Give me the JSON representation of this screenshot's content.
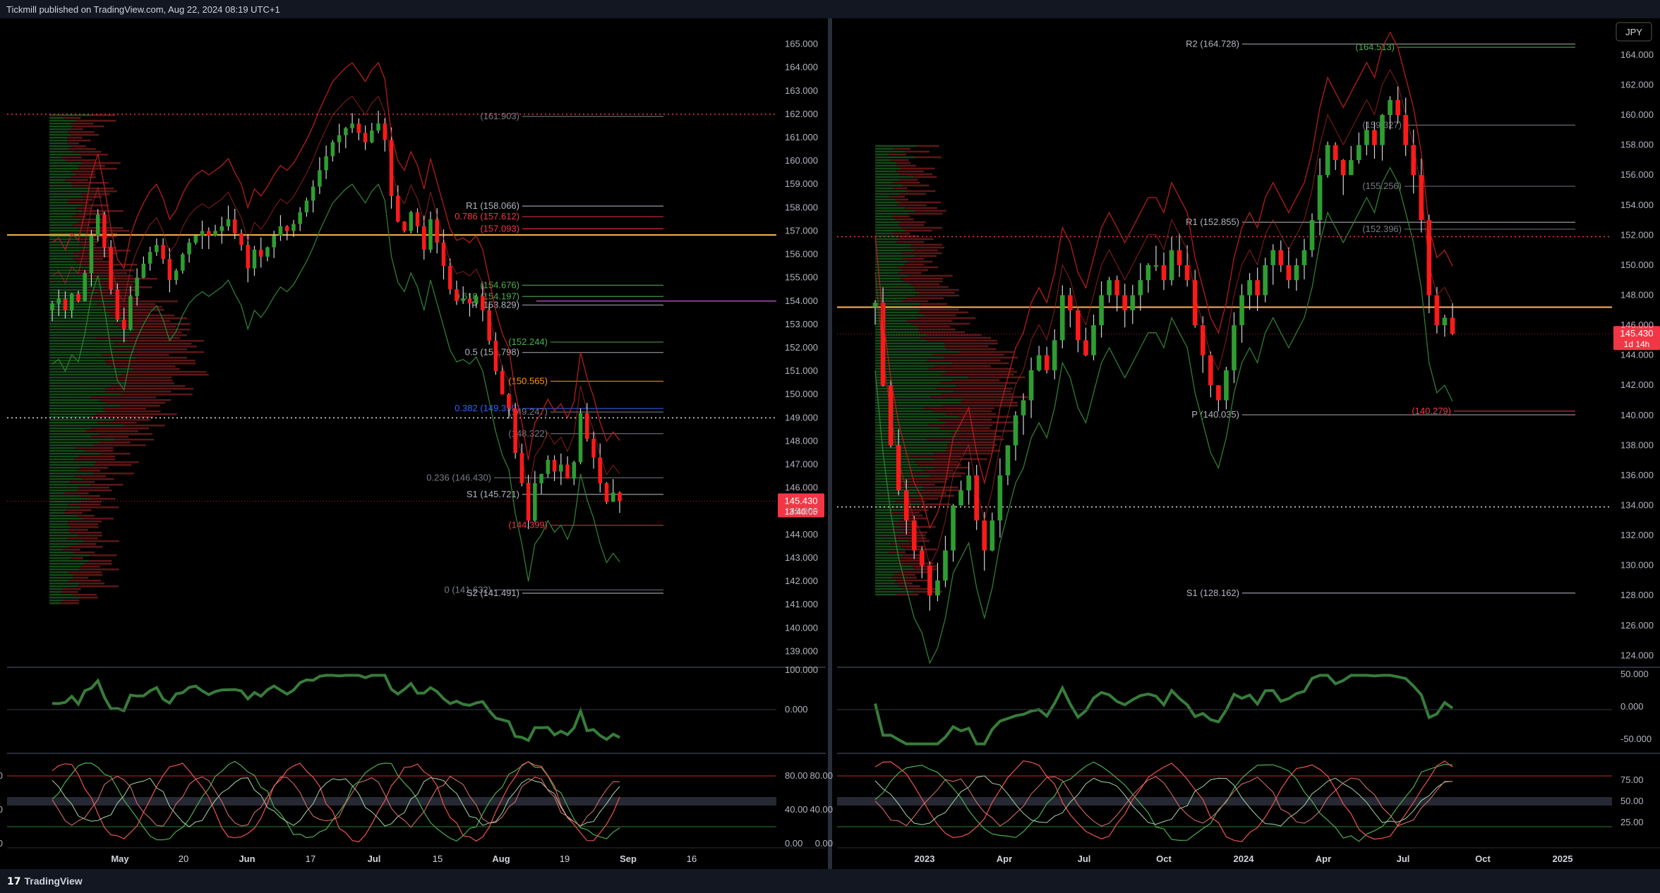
{
  "header": {
    "published_text": "Tickmill published on TradingView.com, Aug 22, 2024 08:19 UTC+1"
  },
  "footer": {
    "logo_text": "TradingView",
    "logo_glyph": "17"
  },
  "chart_data": [
    {
      "type": "candlestick",
      "panel": "left",
      "ylim": [
        138.5,
        165.5
      ],
      "price_ticks": [
        "165.000",
        "164.000",
        "163.000",
        "162.000",
        "161.000",
        "160.000",
        "159.000",
        "158.000",
        "157.000",
        "156.000",
        "155.000",
        "154.000",
        "153.000",
        "152.000",
        "151.000",
        "150.000",
        "149.000",
        "148.000",
        "147.000",
        "146.000",
        "145.000",
        "144.000",
        "143.000",
        "142.000",
        "141.000",
        "140.000",
        "139.000"
      ],
      "x_ticks": [
        "May",
        "20",
        "Jun",
        "17",
        "Jul",
        "15",
        "Aug",
        "19",
        "Sep",
        "16"
      ],
      "last_price": {
        "value": "145.430",
        "countdown": "13:40:05"
      },
      "closes": [
        153.9,
        154.1,
        153.6,
        154.3,
        154.0,
        155.2,
        156.8,
        157.7,
        156.3,
        154.5,
        153.2,
        152.8,
        154.2,
        155.0,
        155.6,
        156.1,
        156.4,
        155.8,
        154.9,
        155.3,
        156.0,
        156.5,
        156.8,
        157.0,
        156.8,
        157.0,
        157.2,
        157.5,
        156.9,
        156.4,
        155.4,
        156.2,
        155.9,
        156.3,
        156.8,
        157.2,
        157.0,
        157.3,
        157.8,
        158.3,
        158.9,
        159.6,
        160.2,
        160.8,
        161.1,
        161.4,
        161.6,
        161.2,
        160.8,
        161.3,
        161.6,
        160.9,
        158.5,
        157.4,
        157.0,
        157.8,
        157.2,
        156.2,
        157.5,
        156.5,
        155.5,
        154.5,
        154.0,
        154.1,
        153.9,
        154.2,
        153.6,
        152.3,
        151.0,
        150.0,
        149.4,
        147.5,
        146.2,
        144.6,
        146.2,
        146.6,
        147.2,
        146.7,
        147.0,
        146.4,
        147.1,
        149.2,
        148.1,
        147.3,
        146.2,
        145.4,
        145.8,
        145.43
      ],
      "levels": [
        {
          "label": "(161.903)",
          "value": 161.903,
          "color": "#787b86"
        },
        {
          "label": "0.786 (157.612)",
          "value": 157.612,
          "color": "#f23645"
        },
        {
          "label": "R1 (158.066)",
          "value": 158.066,
          "color": "#b2b5be"
        },
        {
          "label": "(157.093)",
          "value": 157.093,
          "color": "#f23645"
        },
        {
          "label": "(154.676)",
          "value": 154.676,
          "color": "#4caf50"
        },
        {
          "label": "0.618 (154.197)",
          "value": 154.197,
          "color": "#4caf50"
        },
        {
          "label": "P (153.829)",
          "value": 153.829,
          "color": "#b2b5be"
        },
        {
          "label": "(152.244)",
          "value": 152.244,
          "color": "#4caf50"
        },
        {
          "label": "0.5 (151.798)",
          "value": 151.798,
          "color": "#b2b5be"
        },
        {
          "label": "(150.565)",
          "value": 150.565,
          "color": "#ff9800"
        },
        {
          "label": "0.382 (149.399)",
          "value": 149.399,
          "color": "#2962ff"
        },
        {
          "label": "(149.247)",
          "value": 149.247,
          "color": "#787b86"
        },
        {
          "label": "(148.322)",
          "value": 148.322,
          "color": "#787b86"
        },
        {
          "label": "0.236 (146.430)",
          "value": 146.43,
          "color": "#787b86"
        },
        {
          "label": "S1 (145.721)",
          "value": 145.721,
          "color": "#b2b5be"
        },
        {
          "label": "(144.399)",
          "value": 144.399,
          "color": "#f23645"
        },
        {
          "label": "0 (141.632)",
          "value": 141.632,
          "color": "#787b86"
        },
        {
          "label": "S2 (141.491)",
          "value": 141.491,
          "color": "#b2b5be"
        }
      ],
      "orange_level": 156.83,
      "red_dotted_level": 162.0,
      "white_dotted_level": 149.0,
      "purple_level": 154.0,
      "rsi_ticks": [
        "100.000",
        "0.000"
      ],
      "stoch_ticks": [
        "80.00",
        "40.00",
        "0.00"
      ]
    },
    {
      "type": "candlestick",
      "panel": "right",
      "symbol": "JPY",
      "ylim": [
        123.5,
        165.5
      ],
      "price_ticks": [
        "164.000",
        "162.000",
        "160.000",
        "158.000",
        "156.000",
        "154.000",
        "152.000",
        "150.000",
        "148.000",
        "146.000",
        "144.000",
        "142.000",
        "140.000",
        "138.000",
        "136.000",
        "134.000",
        "132.000",
        "130.000",
        "128.000",
        "126.000",
        "124.000"
      ],
      "x_ticks": [
        "2023",
        "Apr",
        "Jul",
        "Oct",
        "2024",
        "Apr",
        "Jul",
        "Oct",
        "2025"
      ],
      "last_price": {
        "value": "145.430",
        "countdown": "1d 14h"
      },
      "closes": [
        147.5,
        142,
        138,
        135,
        133,
        131,
        130,
        128,
        129,
        131,
        134,
        135,
        136,
        133,
        131,
        133,
        136,
        138,
        140,
        141,
        143,
        144,
        143,
        145,
        148,
        147,
        145,
        144,
        146,
        148,
        149,
        148,
        147,
        148,
        149,
        150,
        150,
        149,
        151,
        150,
        149,
        146,
        144,
        142,
        141,
        143,
        146,
        148,
        149,
        148,
        150,
        151,
        150,
        149,
        150,
        151,
        153,
        156,
        158,
        157,
        156,
        157,
        158,
        159,
        158,
        160,
        161,
        160,
        158,
        156,
        153,
        148,
        146,
        146.5,
        145.43
      ],
      "levels": [
        {
          "label": "R2 (164.728)",
          "value": 164.728,
          "color": "#b2b5be"
        },
        {
          "label": "(164.513)",
          "value": 164.513,
          "color": "#4caf50"
        },
        {
          "label": "(159.327)",
          "value": 159.327,
          "color": "#787b86"
        },
        {
          "label": "(155.256)",
          "value": 155.256,
          "color": "#787b86"
        },
        {
          "label": "R1 (152.855)",
          "value": 152.855,
          "color": "#b2b5be"
        },
        {
          "label": "(152.396)",
          "value": 152.396,
          "color": "#787b86"
        },
        {
          "label": "P (140.035)",
          "value": 140.035,
          "color": "#b2b5be"
        },
        {
          "label": "(140.279)",
          "value": 140.279,
          "color": "#f23645"
        },
        {
          "label": "S1 (128.162)",
          "value": 128.162,
          "color": "#b2b5be"
        }
      ],
      "orange_level": 147.2,
      "red_dotted_level": 151.9,
      "white_dotted_level": 133.9,
      "rsi_ticks": [
        "50.000",
        "0.000",
        "-50.000"
      ],
      "stoch_ticks_left": [
        "80.00",
        "40.00",
        "0.00"
      ],
      "stoch_ticks_right": [
        "75.00",
        "50.00",
        "25.00"
      ]
    }
  ]
}
